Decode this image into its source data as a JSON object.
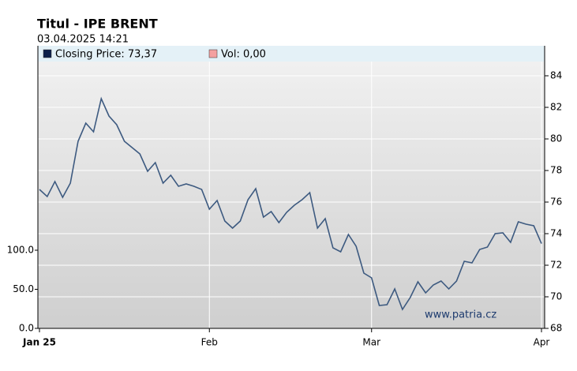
{
  "chart_data": {
    "type": "line",
    "title": "Titul - IPE BRENT",
    "subtitle": "03.04.2025 14:21",
    "legend": [
      {
        "label": "Closing Price: 73,37",
        "color": "#0d1f4a"
      },
      {
        "label": "Vol: 0,00",
        "color": "#f4a0a0"
      }
    ],
    "annotation": "www.patria.cz",
    "categories": [
      "Jan 25",
      null,
      null,
      null,
      null,
      null,
      null,
      null,
      null,
      null,
      null,
      null,
      null,
      null,
      null,
      null,
      null,
      null,
      null,
      null,
      null,
      null,
      "Feb",
      null,
      null,
      null,
      null,
      null,
      null,
      null,
      null,
      null,
      null,
      null,
      null,
      null,
      null,
      null,
      null,
      null,
      null,
      null,
      null,
      "Mar",
      null,
      null,
      null,
      null,
      null,
      null,
      null,
      null,
      null,
      null,
      null,
      null,
      null,
      null,
      null,
      null,
      null,
      null,
      null,
      null,
      null,
      "Apr"
    ],
    "series": [
      {
        "name": "Closing Price",
        "color": "#3d5a80",
        "values": [
          76.8,
          76.35,
          77.3,
          76.3,
          77.2,
          79.85,
          81.0,
          80.45,
          82.55,
          81.45,
          80.9,
          79.85,
          79.45,
          79.05,
          77.95,
          78.5,
          77.2,
          77.7,
          77.0,
          77.15,
          77.0,
          76.8,
          75.55,
          76.1,
          74.8,
          74.35,
          74.8,
          76.15,
          76.85,
          75.05,
          75.4,
          74.7,
          75.35,
          75.8,
          76.15,
          76.6,
          74.35,
          74.95,
          73.1,
          72.85,
          73.95,
          73.2,
          71.5,
          71.2,
          69.45,
          69.5,
          70.5,
          69.2,
          69.95,
          70.95,
          70.25,
          70.75,
          71.0,
          70.5,
          71.0,
          72.25,
          72.15,
          73.0,
          73.15,
          74.0,
          74.05,
          73.45,
          74.75,
          74.6,
          74.5,
          73.37
        ]
      }
    ],
    "ylim": [
      68,
      85.9
    ],
    "yticks": [
      68,
      70,
      72,
      74,
      76,
      78,
      80,
      82,
      84
    ],
    "y2lim": [
      0,
      361.6
    ],
    "y2ticks": [
      {
        "value": 0,
        "label": "0.0"
      },
      {
        "value": 50,
        "label": "50.0"
      },
      {
        "value": 100,
        "label": "100.0"
      }
    ],
    "grid": true
  }
}
